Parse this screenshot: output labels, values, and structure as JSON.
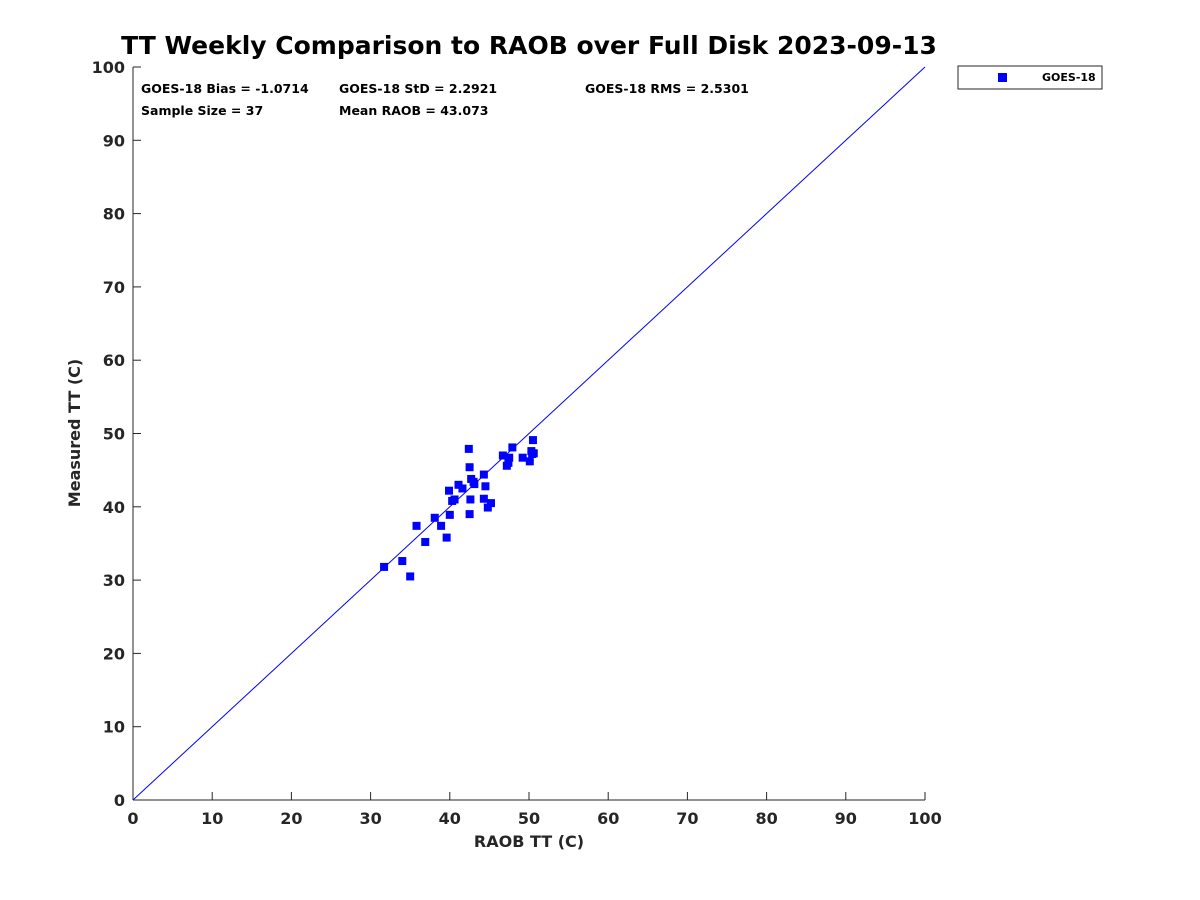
{
  "chart_data": {
    "type": "scatter",
    "title": "TT Weekly Comparison to RAOB over Full Disk 2023-09-13",
    "xlabel": "RAOB TT (C)",
    "ylabel": "Measured TT (C)",
    "xlim": [
      0,
      100
    ],
    "ylim": [
      0,
      100
    ],
    "xticks": [
      "0",
      "10",
      "20",
      "30",
      "40",
      "50",
      "60",
      "70",
      "80",
      "90",
      "100"
    ],
    "yticks": [
      "0",
      "10",
      "20",
      "30",
      "40",
      "50",
      "60",
      "70",
      "80",
      "90",
      "100"
    ],
    "grid": false,
    "legend_position": "outside-top-right",
    "reference_line": {
      "name": "one-to-one line",
      "x": [
        0,
        100
      ],
      "y": [
        0,
        100
      ],
      "color": "#0000ff"
    },
    "stats": {
      "bias": "GOES-18 Bias = -1.0714",
      "std": "GOES-18 StD = 2.2921",
      "rms": "GOES-18 RMS = 2.5301",
      "sample_size": "Sample Size = 37",
      "mean_raob": "Mean RAOB = 43.073"
    },
    "series": [
      {
        "name": "GOES-18",
        "color": "#0000ff",
        "marker": "square",
        "x": [
          31.7,
          34.0,
          35.0,
          35.8,
          36.9,
          38.1,
          38.9,
          39.6,
          39.9,
          40.0,
          40.3,
          40.6,
          41.1,
          41.6,
          42.4,
          42.5,
          42.6,
          42.5,
          42.7,
          43.0,
          43.1,
          44.3,
          44.3,
          44.5,
          44.8,
          45.2,
          46.7,
          47.2,
          47.4,
          47.5,
          47.9,
          49.2,
          50.1,
          50.3,
          50.4,
          50.5,
          50.6
        ],
        "y": [
          31.8,
          32.6,
          30.5,
          37.4,
          35.2,
          38.5,
          37.4,
          35.8,
          42.2,
          38.9,
          40.8,
          41.0,
          43.0,
          42.5,
          47.9,
          45.4,
          41.0,
          39.0,
          43.8,
          43.4,
          43.1,
          44.4,
          41.1,
          42.8,
          39.9,
          40.5,
          47.0,
          45.6,
          46.0,
          46.7,
          48.1,
          46.7,
          46.2,
          47.6,
          47.2,
          49.1,
          47.3
        ]
      }
    ]
  },
  "colors": {
    "series": "#0000ff",
    "axis": "#262626",
    "background": "#ffffff"
  },
  "legend": {
    "label": "GOES-18"
  }
}
